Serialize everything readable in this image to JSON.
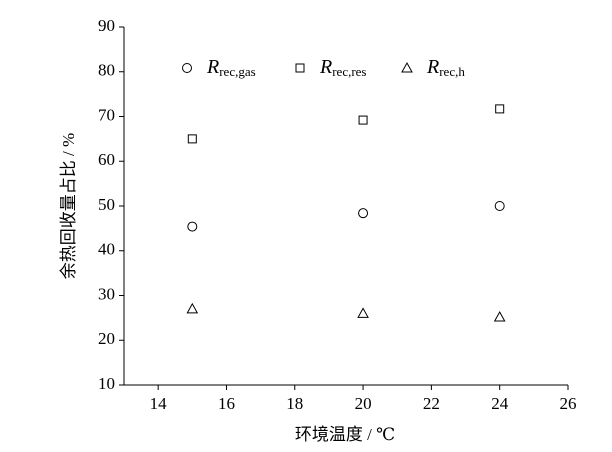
{
  "chart_data": {
    "type": "scatter",
    "x_label": "环境温度 / ℃",
    "y_label": "余热回收量占比 / %",
    "xlim": [
      13,
      26
    ],
    "xticks": [
      14,
      16,
      18,
      20,
      22,
      24,
      26
    ],
    "ylim": [
      10,
      90
    ],
    "yticks": [
      10,
      20,
      30,
      40,
      50,
      60,
      70,
      80,
      90
    ],
    "grid": false,
    "legend": "top",
    "series": [
      {
        "name": "Rrec,gas",
        "color": "#000000",
        "marker": "circle",
        "x": [
          15,
          20,
          24
        ],
        "values": [
          45.4,
          48.4,
          50
        ]
      },
      {
        "name": "Rrec,res",
        "color": "#000000",
        "marker": "square",
        "x": [
          15,
          20,
          24
        ],
        "values": [
          65,
          69.2,
          71.7
        ]
      },
      {
        "name": "Rrec,h",
        "color": "#000000",
        "marker": "triangle",
        "x": [
          15,
          20,
          24
        ],
        "values": [
          27,
          26,
          25.2
        ]
      }
    ]
  }
}
